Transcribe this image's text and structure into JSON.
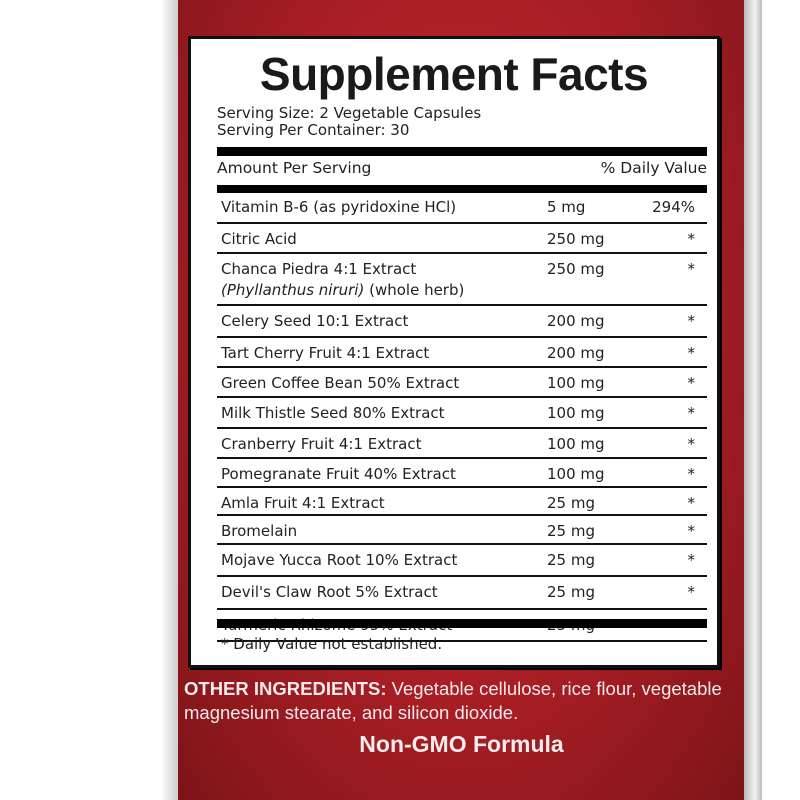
{
  "label": {
    "title": "Supplement Facts",
    "serving_size": "Serving Size: 2 Vegetable Capsules",
    "servings_per_container": "Serving Per Container: 30",
    "amount_header": "Amount Per Serving",
    "dv_header": "% Daily Value",
    "rows": [
      {
        "name": "Vitamin B-6 (as pyridoxine HCl)",
        "amount": "5 mg",
        "dv": "294%"
      },
      {
        "name": "Citric Acid",
        "amount": "250 mg",
        "dv": "*"
      },
      {
        "name": "Chanca Piedra 4:1 Extract",
        "sub_italic": "(Phyllanthus niruri)",
        "sub_rest": " (whole herb)",
        "amount": "250 mg",
        "dv": "*"
      },
      {
        "name": "Celery Seed 10:1 Extract",
        "amount": "200 mg",
        "dv": "*"
      },
      {
        "name": "Tart Cherry Fruit 4:1 Extract",
        "amount": "200 mg",
        "dv": "*"
      },
      {
        "name": "Green Coffee Bean 50% Extract",
        "amount": "100 mg",
        "dv": "*"
      },
      {
        "name": "Milk Thistle Seed 80% Extract",
        "amount": "100 mg",
        "dv": "*"
      },
      {
        "name": "Cranberry Fruit 4:1 Extract",
        "amount": "100 mg",
        "dv": "*"
      },
      {
        "name": "Pomegranate Fruit 40% Extract",
        "amount": "100 mg",
        "dv": "*"
      },
      {
        "name": "Amla Fruit 4:1 Extract",
        "amount": "25 mg",
        "dv": "*"
      },
      {
        "name": "Bromelain",
        "amount": "25 mg",
        "dv": "*"
      },
      {
        "name": "Mojave Yucca Root 10% Extract",
        "amount": "25 mg",
        "dv": "*"
      },
      {
        "name": "Devil's Claw Root 5% Extract",
        "amount": "25 mg",
        "dv": "*"
      },
      {
        "name": "Turmeric Rhizome 95% Extract",
        "amount": "25 mg",
        "dv": "*"
      }
    ],
    "footnote": "* Daily Value not established."
  },
  "other_ingredients": {
    "heading": "OTHER INGREDIENTS:",
    "text": " Vegetable cellulose, rice flour, vegetable magnesium stearate, and silicon dioxide."
  },
  "badge": "Non-GMO Formula",
  "colors": {
    "panel_red": "#b3222a",
    "label_bg": "#ffffff",
    "text": "#222222"
  }
}
